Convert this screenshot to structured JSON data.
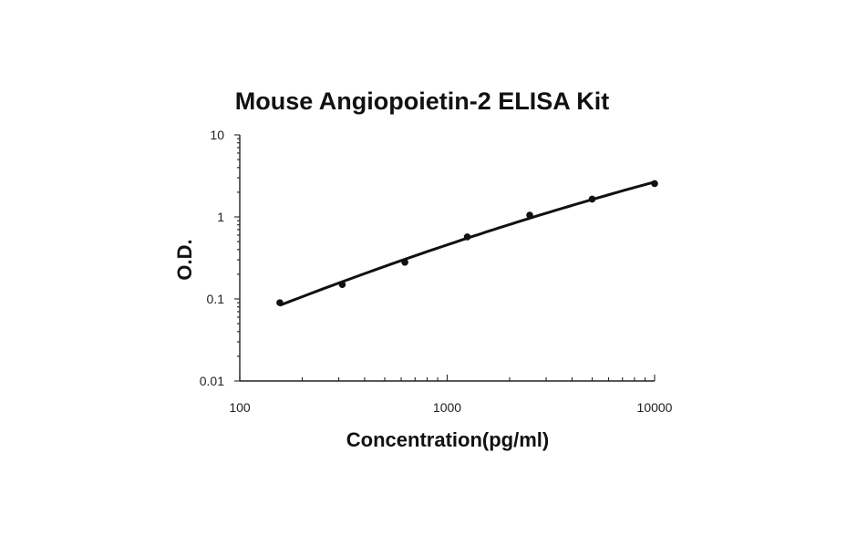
{
  "chart_data": {
    "type": "scatter",
    "title": "Mouse Angiopoietin-2  ELISA Kit",
    "xlabel": "Concentration(pg/ml)",
    "ylabel": "O.D.",
    "x_scale": "log",
    "y_scale": "log",
    "xlim": [
      100,
      10000
    ],
    "ylim": [
      0.01,
      10
    ],
    "x_ticks": [
      "100",
      "1000",
      "10000"
    ],
    "y_ticks": [
      "10",
      "1",
      "0.1",
      "0.01"
    ],
    "series": [
      {
        "points": [
          {
            "x": 156,
            "y": 0.09
          },
          {
            "x": 312,
            "y": 0.15
          },
          {
            "x": 625,
            "y": 0.28
          },
          {
            "x": 1250,
            "y": 0.57
          },
          {
            "x": 2500,
            "y": 1.05
          },
          {
            "x": 5000,
            "y": 1.65
          },
          {
            "x": 10000,
            "y": 2.55
          }
        ],
        "fit_curve": true
      }
    ],
    "grid": false,
    "legend": "none",
    "colors": {
      "line": "#111111",
      "marker": "#111111",
      "axis": "#222222"
    }
  }
}
